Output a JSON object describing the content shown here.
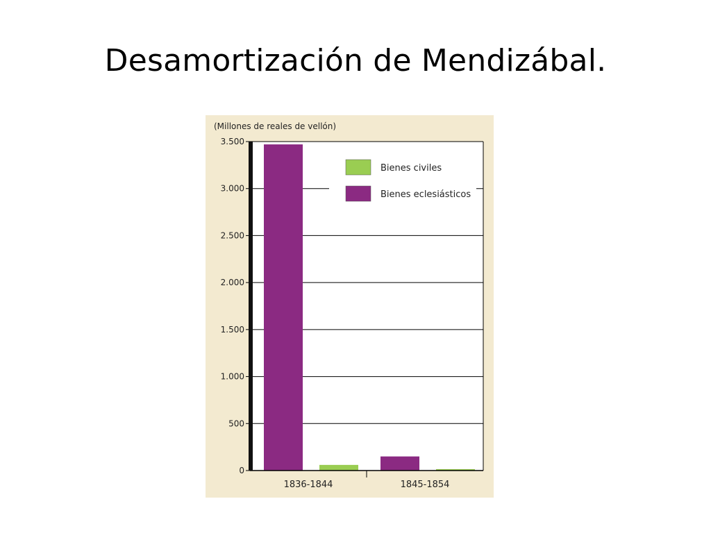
{
  "slide": {
    "title": "Desamortización de Mendizábal."
  },
  "chart_data": {
    "type": "bar",
    "unit_label": "(Millones de reales de vellón)",
    "categories": [
      "1836-1844",
      "1845-1854"
    ],
    "series": [
      {
        "name": "Bienes eclesiásticos",
        "values": [
          3470,
          150
        ],
        "color": "#8b2a82"
      },
      {
        "name": "Bienes civiles",
        "values": [
          60,
          15
        ],
        "color": "#9acd52"
      }
    ],
    "ylim": [
      0,
      3500
    ],
    "yticks": [
      0,
      500,
      1000,
      1500,
      2000,
      2500,
      3000,
      3500
    ],
    "ytick_labels": [
      "0",
      "500",
      "1.000",
      "1.500",
      "2.000",
      "2.500",
      "3.000",
      "3.500"
    ],
    "legend": {
      "position": "top-right",
      "items": [
        {
          "label": "Bienes civiles",
          "color": "#9acd52"
        },
        {
          "label": "Bienes eclesiásticos",
          "color": "#8b2a82"
        }
      ]
    },
    "grid": true
  }
}
